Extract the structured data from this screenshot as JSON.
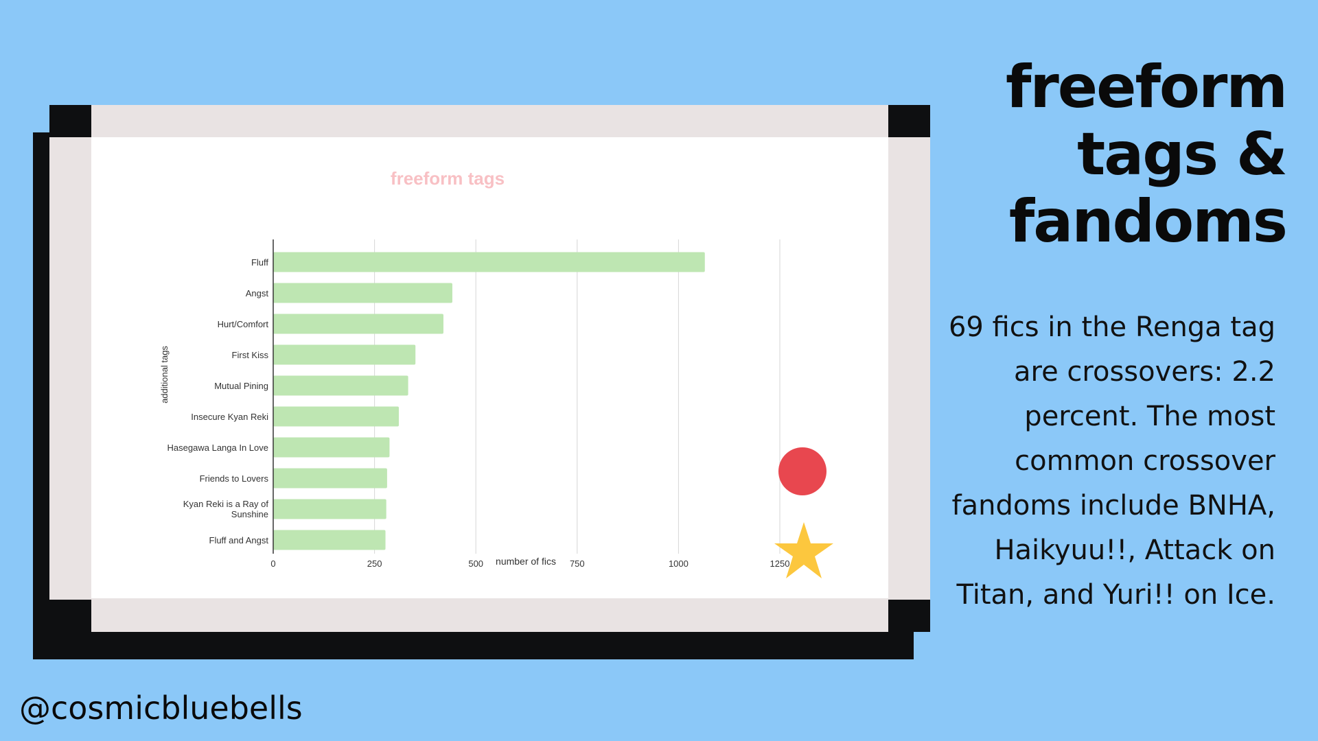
{
  "heading": {
    "lines": [
      "freeform",
      "tags &",
      "fandoms"
    ]
  },
  "description": "69 fics in the Renga tag are crossovers: 2.2 percent. The most common crossover fandoms include BNHA, Haikyuu!!, Attack on Titan, and Yuri!! on Ice.",
  "handle": "@cosmicbluebells",
  "colors": {
    "background": "#8BC8F8",
    "bar": "#BEE6B2",
    "chart_title": "#F8C0C4",
    "circle": "#E8474F",
    "star": "#FCC73E"
  },
  "chart_data": {
    "type": "bar",
    "orientation": "horizontal",
    "title": "freeform tags",
    "xlabel": "number of fics",
    "ylabel": "additional tags",
    "categories": [
      "Fluff",
      "Angst",
      "Hurt/Comfort",
      "First Kiss",
      "Mutual Pining",
      "Insecure Kyan Reki",
      "Hasegawa Langa In Love",
      "Friends to Lovers",
      "Kyan Reki is a Ray of Sunshine",
      "Fluff and Angst"
    ],
    "values": [
      1065,
      442,
      420,
      351,
      333,
      310,
      287,
      281,
      279,
      277
    ],
    "xlim": [
      0,
      1250
    ],
    "xticks": [
      0,
      250,
      500,
      750,
      1000,
      1250
    ],
    "grid": true
  }
}
